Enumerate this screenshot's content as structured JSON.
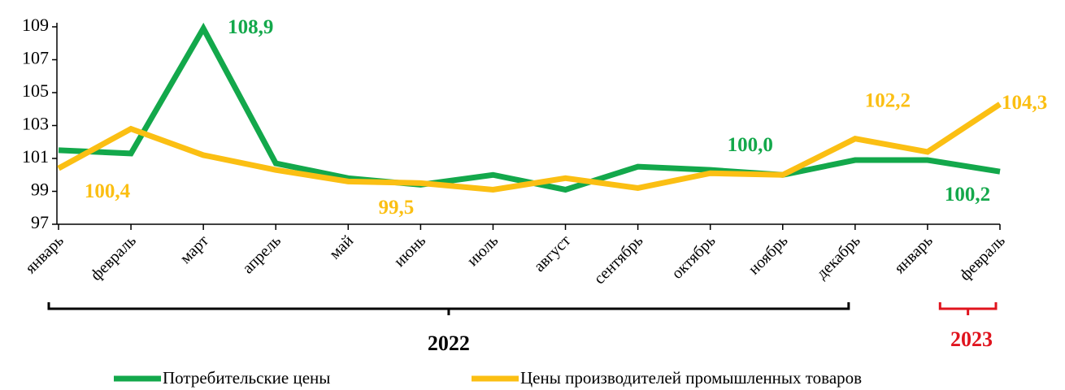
{
  "chart_data": {
    "type": "line",
    "categories": [
      "январь",
      "февраль",
      "март",
      "апрель",
      "май",
      "июнь",
      "июль",
      "август",
      "сентябрь",
      "октябрь",
      "ноябрь",
      "декабрь",
      "январь",
      "февраль"
    ],
    "series": [
      {
        "name": "Потребительские цены",
        "color": "#13a84b",
        "values": [
          101.5,
          101.3,
          108.9,
          100.7,
          99.8,
          99.4,
          100.0,
          99.1,
          100.5,
          100.3,
          100.0,
          100.9,
          100.9,
          100.2
        ],
        "value_labels": [
          null,
          null,
          "108,9",
          null,
          null,
          null,
          null,
          null,
          null,
          null,
          "100,0",
          null,
          null,
          "100,2"
        ]
      },
      {
        "name": "Цены производителей промышленных товаров",
        "color": "#fbbf13",
        "values": [
          100.4,
          102.8,
          101.2,
          100.3,
          99.6,
          99.5,
          99.1,
          99.8,
          99.2,
          100.1,
          100.0,
          102.2,
          101.4,
          104.3
        ],
        "value_labels": [
          "100,4",
          null,
          null,
          null,
          null,
          "99,5",
          null,
          null,
          null,
          null,
          null,
          "102,2",
          null,
          "104,3"
        ]
      }
    ],
    "ylim": [
      97,
      109
    ],
    "yticks": [
      97,
      99,
      101,
      103,
      105,
      107,
      109
    ],
    "groups": [
      {
        "label": "2022",
        "span": 12,
        "color": "#000000"
      },
      {
        "label": "2023",
        "span": 2,
        "color": "#e0141e"
      }
    ]
  }
}
